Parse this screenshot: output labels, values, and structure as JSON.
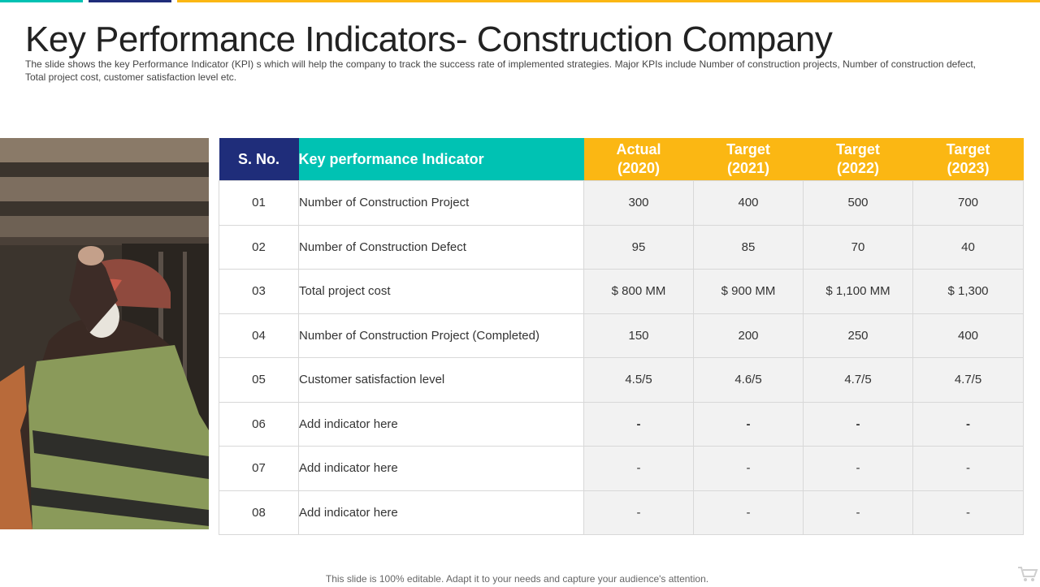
{
  "header": {
    "title": "Key Performance Indicators- Construction Company",
    "subtitle": "The slide shows the key Performance Indicator (KPI) s which will help the company to track the success rate of implemented strategies. Major KPIs include Number of construction projects, Number of construction defect, Total project cost, customer satisfaction level etc."
  },
  "colors": {
    "teal": "#00c2b3",
    "navy": "#1f2d7a",
    "yellow": "#fbb713"
  },
  "table": {
    "headers": {
      "sno": "S. No.",
      "kpi": "Key performance Indicator",
      "years": [
        {
          "l1": "Actual",
          "l2": "(2020)"
        },
        {
          "l1": "Target",
          "l2": "(2021)"
        },
        {
          "l1": "Target",
          "l2": "(2022)"
        },
        {
          "l1": "Target",
          "l2": "(2023)"
        }
      ]
    },
    "rows": [
      {
        "sno": "01",
        "kpi": "Number of Construction Project",
        "values": [
          "300",
          "400",
          "500",
          "700"
        ]
      },
      {
        "sno": "02",
        "kpi": "Number of Construction Defect",
        "values": [
          "95",
          "85",
          "70",
          "40"
        ]
      },
      {
        "sno": "03",
        "kpi": "Total project cost",
        "values": [
          "$ 800 MM",
          "$ 900 MM",
          "$ 1,100 MM",
          "$ 1,300"
        ]
      },
      {
        "sno": "04",
        "kpi": "Number of Construction Project (Completed)",
        "values": [
          "150",
          "200",
          "250",
          "400"
        ]
      },
      {
        "sno": "05",
        "kpi": "Customer satisfaction level",
        "values": [
          "4.5/5",
          "4.6/5",
          "4.7/5",
          "4.7/5"
        ]
      },
      {
        "sno": "06",
        "kpi": "Add indicator here",
        "values": [
          "-",
          "-",
          "-",
          "-"
        ]
      },
      {
        "sno": "07",
        "kpi": "Add indicator here",
        "values": [
          "-",
          "-",
          "-",
          "-"
        ]
      },
      {
        "sno": "08",
        "kpi": "Add indicator here",
        "values": [
          "-",
          "-",
          "-",
          "-"
        ]
      }
    ]
  },
  "footer": {
    "note": "This slide is 100% editable. Adapt it to your needs and capture your audience's attention."
  },
  "icons": {
    "photo": "construction-worker-photo",
    "cart": "cart-icon"
  }
}
